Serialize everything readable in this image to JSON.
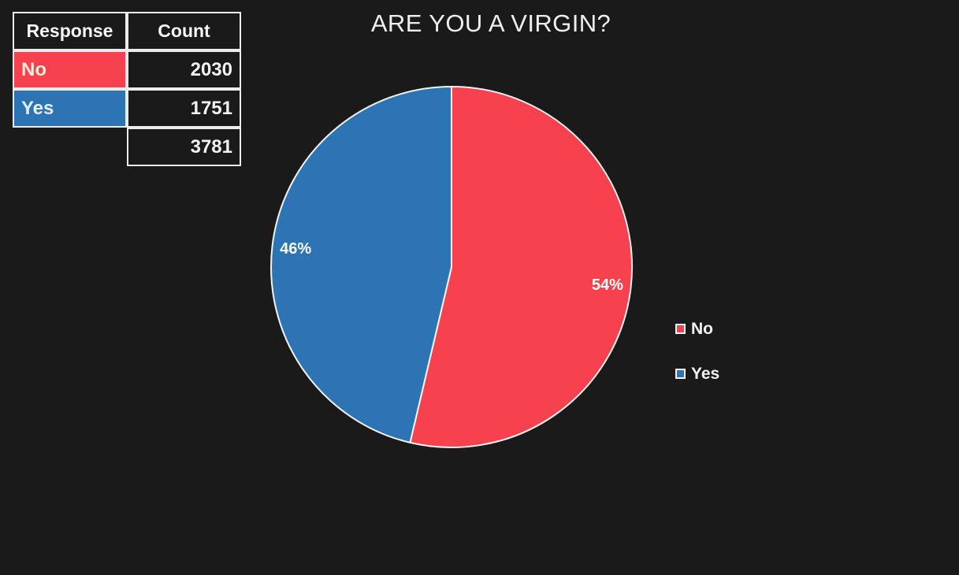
{
  "background_color": "#1A1A1A",
  "title": {
    "text": "ARE YOU A VIRGIN?"
  },
  "table": {
    "headers": [
      "Response",
      "Count"
    ],
    "rows": [
      {
        "response": "No",
        "count": "2030",
        "color": "#F8414E"
      },
      {
        "response": "Yes",
        "count": "1751",
        "color": "#2D74B5"
      }
    ],
    "total": "3781"
  },
  "legend": [
    {
      "label": "No",
      "color": "#F8414E"
    },
    {
      "label": "Yes",
      "color": "#2D74B5"
    }
  ],
  "chart_data": {
    "type": "pie",
    "title": "ARE YOU A VIRGIN?",
    "categories": [
      "No",
      "Yes"
    ],
    "values": [
      2030,
      1751
    ],
    "percents": [
      54,
      46
    ],
    "labels": [
      "54%",
      "46%"
    ],
    "colors": [
      "#F8414E",
      "#2D74B5"
    ],
    "total": 3781,
    "start_angle_deg": 0,
    "direction": "clockwise",
    "legend_position": "right",
    "label_radius_frac": 0.87,
    "slice_border_color": "#F2F2F2"
  }
}
